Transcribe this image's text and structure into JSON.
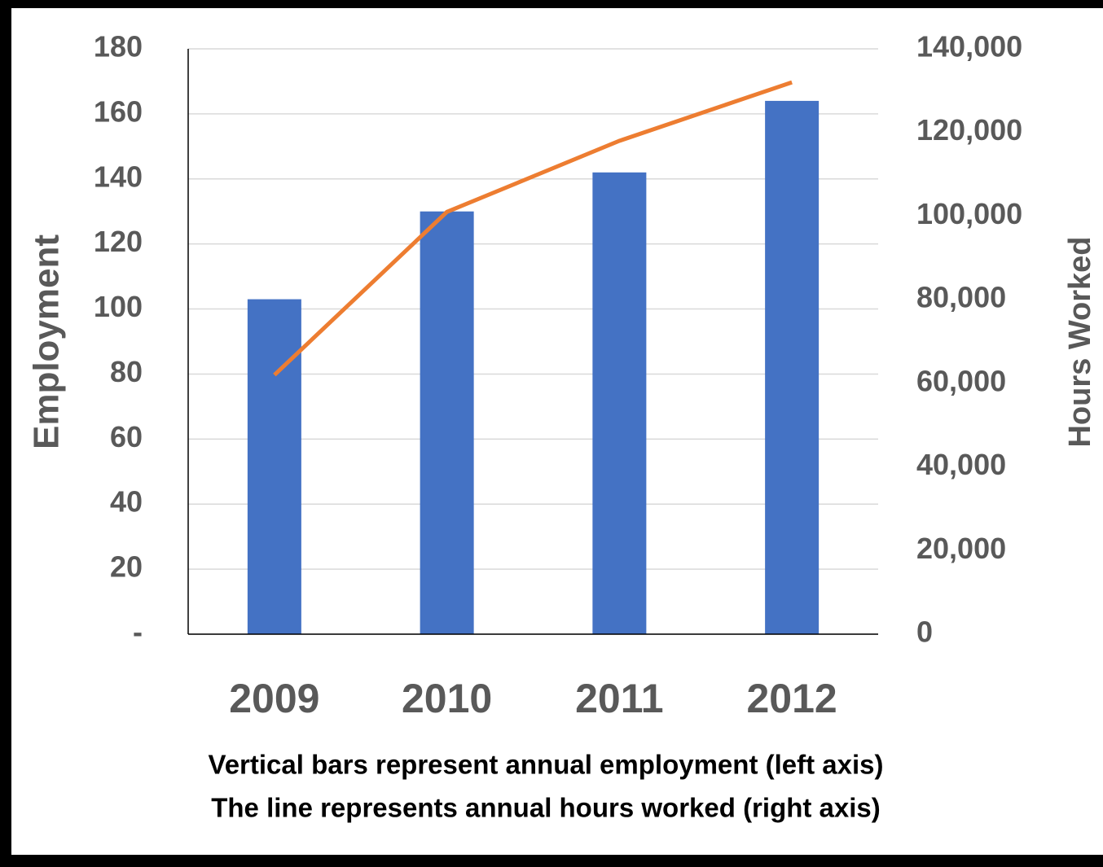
{
  "chart_data": {
    "type": "bar",
    "categories": [
      "2009",
      "2010",
      "2011",
      "2012"
    ],
    "series": [
      {
        "name": "Employment",
        "type": "bar",
        "color": "#4472c4",
        "values": [
          103,
          130,
          142,
          164
        ]
      },
      {
        "name": "Hours Worked",
        "type": "line",
        "axis": "y2",
        "color": "#ed7d31",
        "values": [
          62000,
          101000,
          118000,
          132000
        ]
      }
    ],
    "ylabel": "Employment",
    "y2label": "Hours Worked",
    "ylim": [
      0,
      180
    ],
    "yticks": [
      {
        "value": 0,
        "label": "-"
      },
      20,
      40,
      60,
      80,
      100,
      120,
      140,
      160,
      180
    ],
    "y2lim": [
      0,
      140000
    ],
    "y2ticks": [
      0,
      {
        "value": 20000,
        "label": "20,000"
      },
      {
        "value": 40000,
        "label": "40,000"
      },
      {
        "value": 60000,
        "label": "60,000"
      },
      {
        "value": 80000,
        "label": "80,000"
      },
      {
        "value": 100000,
        "label": "100,000"
      },
      {
        "value": 120000,
        "label": "120,000"
      },
      {
        "value": 140000,
        "label": "140,000"
      }
    ],
    "grid": true,
    "annotations": [
      "Vertical bars represent annual employment (left axis)",
      "The line represents annual hours worked (right axis)"
    ]
  }
}
